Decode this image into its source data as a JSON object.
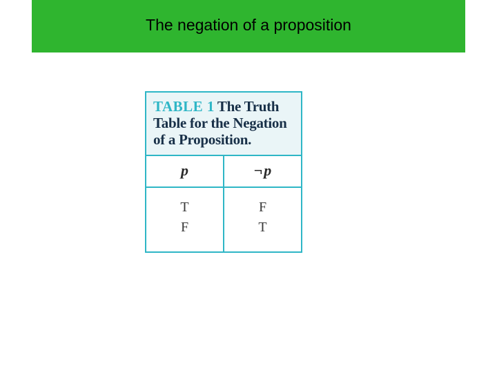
{
  "colors": {
    "banner_bg": "#2fb52f",
    "table_border": "#2eb6c6",
    "caption_bg": "#eaf5f7",
    "caption_label_color": "#2eb6c6",
    "caption_text_color": "#183048",
    "head_bg": "#ffffff",
    "body_bg": "#ffffff",
    "text_color": "#2a2a2a",
    "body_text_color": "#3a3a3a"
  },
  "banner": {
    "title": "The negation of a proposition"
  },
  "table": {
    "caption_label": "TABLE 1",
    "caption_text": "The Truth Table for the Negation of a Proposition.",
    "columns": {
      "p": "p",
      "notp_symbol": "¬",
      "notp_var": "p"
    },
    "rows": [
      {
        "p": "T",
        "notp": "F"
      },
      {
        "p": "F",
        "notp": "T"
      }
    ]
  }
}
